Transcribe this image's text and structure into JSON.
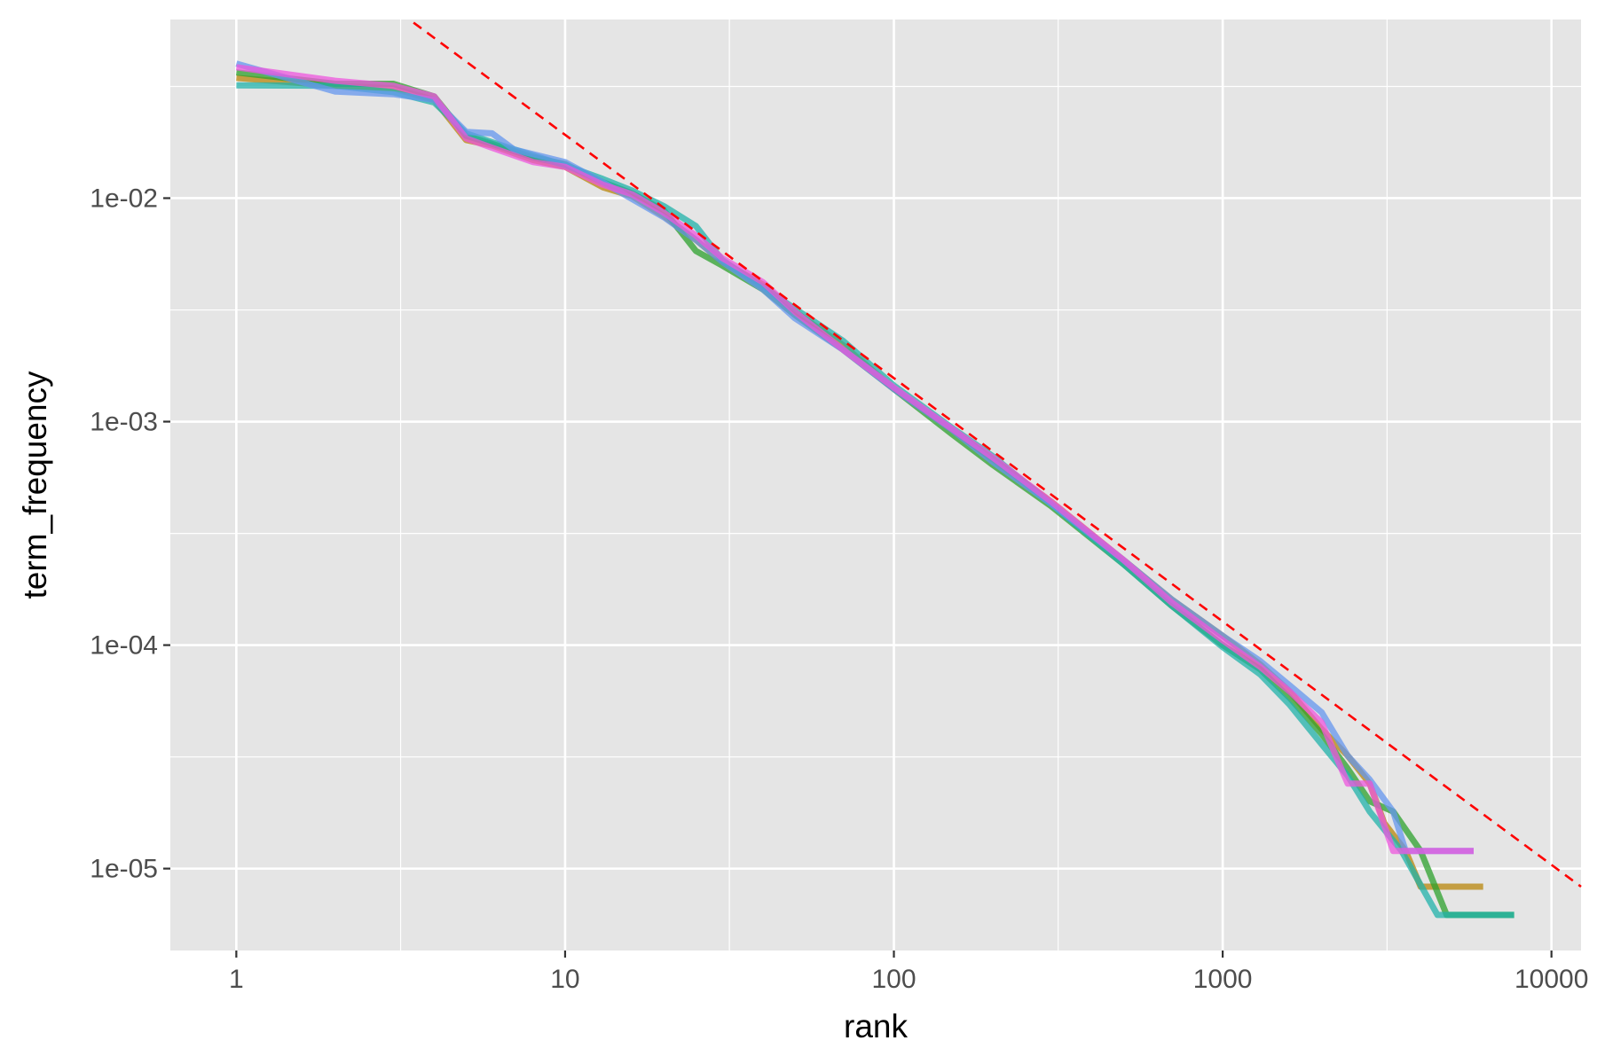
{
  "chart_data": {
    "type": "line",
    "title": "",
    "xlabel": "rank",
    "ylabel": "term_frequency",
    "x_scale": "log10",
    "y_scale": "log10",
    "xlim": [
      0.63,
      12300
    ],
    "ylim": [
      4.3e-06,
      0.063
    ],
    "x_ticks": [
      {
        "value": 1,
        "label": "1"
      },
      {
        "value": 10,
        "label": "10"
      },
      {
        "value": 100,
        "label": "100"
      },
      {
        "value": 1000,
        "label": "1000"
      },
      {
        "value": 10000,
        "label": "10000"
      }
    ],
    "x_minor_ticks": [
      3.16,
      31.6,
      316,
      3162
    ],
    "y_ticks": [
      {
        "value": 0.01,
        "label": "1e-02"
      },
      {
        "value": 0.001,
        "label": "1e-03"
      },
      {
        "value": 0.0001,
        "label": "1e-04"
      },
      {
        "value": 1e-05,
        "label": "1e-05"
      }
    ],
    "y_minor_ticks": [
      0.0316,
      0.00316,
      0.000316,
      3.16e-05
    ],
    "grid": true,
    "legend": "none",
    "colors": {
      "panel_background": "#e5e5e5",
      "grid": "#ffffff",
      "reference_line": "#ff0000"
    },
    "reference_line": {
      "style": "dashed",
      "color": "#ff0000",
      "points": [
        [
          3.46,
          0.061
        ],
        [
          12300,
          8.3e-06
        ]
      ]
    },
    "series": [
      {
        "color": "#b8860b",
        "points": [
          [
            1,
            0.0345
          ],
          [
            2,
            0.0318
          ],
          [
            3,
            0.031
          ],
          [
            4,
            0.0275
          ],
          [
            5,
            0.0182
          ],
          [
            6,
            0.0172
          ],
          [
            8,
            0.0148
          ],
          [
            10,
            0.0138
          ],
          [
            13,
            0.0112
          ],
          [
            16,
            0.0102
          ],
          [
            20,
            0.0083
          ],
          [
            25,
            0.0065
          ],
          [
            30,
            0.0052
          ],
          [
            40,
            0.0041
          ],
          [
            50,
            0.0031
          ],
          [
            70,
            0.0022
          ],
          [
            100,
            0.0014
          ],
          [
            150,
            0.00092
          ],
          [
            200,
            0.00068
          ],
          [
            300,
            0.00044
          ],
          [
            500,
            0.00024
          ],
          [
            700,
            0.00016
          ],
          [
            1000,
            0.00011
          ],
          [
            1300,
            8.2e-05
          ],
          [
            1600,
            6.2e-05
          ],
          [
            2000,
            4.2e-05
          ],
          [
            2400,
            3.2e-05
          ],
          [
            2800,
            2.4e-05
          ],
          [
            3100,
            1.6e-05
          ],
          [
            3600,
            1.2e-05
          ],
          [
            4000,
            8.3e-06
          ],
          [
            6200,
            8.3e-06
          ]
        ]
      },
      {
        "color": "#2ca02c",
        "points": [
          [
            1,
            0.0365
          ],
          [
            2,
            0.0325
          ],
          [
            3,
            0.0325
          ],
          [
            4,
            0.0285
          ],
          [
            5,
            0.019
          ],
          [
            6,
            0.0175
          ],
          [
            8,
            0.0152
          ],
          [
            10,
            0.0142
          ],
          [
            13,
            0.0118
          ],
          [
            16,
            0.0105
          ],
          [
            20,
            0.0088
          ],
          [
            25,
            0.0058
          ],
          [
            30,
            0.005
          ],
          [
            40,
            0.0039
          ],
          [
            50,
            0.003
          ],
          [
            70,
            0.0021
          ],
          [
            100,
            0.0014
          ],
          [
            150,
            0.00088
          ],
          [
            200,
            0.00064
          ],
          [
            300,
            0.00042
          ],
          [
            500,
            0.00023
          ],
          [
            700,
            0.00015
          ],
          [
            1000,
            0.0001
          ],
          [
            1300,
            7.8e-05
          ],
          [
            1600,
            5.8e-05
          ],
          [
            2000,
            4e-05
          ],
          [
            2400,
            2.8e-05
          ],
          [
            2800,
            2e-05
          ],
          [
            3300,
            1.8e-05
          ],
          [
            4000,
            1.2e-05
          ],
          [
            4800,
            6.2e-06
          ],
          [
            7700,
            6.2e-06
          ]
        ]
      },
      {
        "color": "#20b2aa",
        "points": [
          [
            1,
            0.032
          ],
          [
            2,
            0.0318
          ],
          [
            3,
            0.0298
          ],
          [
            4,
            0.0268
          ],
          [
            5,
            0.0195
          ],
          [
            6,
            0.0178
          ],
          [
            8,
            0.0155
          ],
          [
            10,
            0.014
          ],
          [
            13,
            0.0122
          ],
          [
            16,
            0.0108
          ],
          [
            20,
            0.0092
          ],
          [
            25,
            0.0075
          ],
          [
            30,
            0.0053
          ],
          [
            40,
            0.004
          ],
          [
            50,
            0.0032
          ],
          [
            70,
            0.0023
          ],
          [
            100,
            0.00145
          ],
          [
            150,
            0.00094
          ],
          [
            200,
            0.0007
          ],
          [
            300,
            0.00043
          ],
          [
            500,
            0.00023
          ],
          [
            700,
            0.00015
          ],
          [
            1000,
            9.8e-05
          ],
          [
            1300,
            7.4e-05
          ],
          [
            1600,
            5.4e-05
          ],
          [
            2000,
            3.6e-05
          ],
          [
            2400,
            2.6e-05
          ],
          [
            2800,
            1.8e-05
          ],
          [
            3500,
            1.2e-05
          ],
          [
            4500,
            6.2e-06
          ],
          [
            7700,
            6.2e-06
          ]
        ]
      },
      {
        "color": "#6495ed",
        "points": [
          [
            1,
            0.04
          ],
          [
            2,
            0.03
          ],
          [
            3,
            0.0292
          ],
          [
            4,
            0.0275
          ],
          [
            5,
            0.0198
          ],
          [
            6,
            0.0195
          ],
          [
            7,
            0.0165
          ],
          [
            10,
            0.0145
          ],
          [
            13,
            0.0118
          ],
          [
            16,
            0.0099
          ],
          [
            20,
            0.0082
          ],
          [
            25,
            0.0065
          ],
          [
            30,
            0.0052
          ],
          [
            40,
            0.0039
          ],
          [
            50,
            0.0029
          ],
          [
            70,
            0.0021
          ],
          [
            100,
            0.0014
          ],
          [
            150,
            0.00092
          ],
          [
            200,
            0.00066
          ],
          [
            300,
            0.00043
          ],
          [
            500,
            0.00024
          ],
          [
            700,
            0.00016
          ],
          [
            1000,
            0.00011
          ],
          [
            1300,
            8.5e-05
          ],
          [
            1600,
            6.6e-05
          ],
          [
            2000,
            5e-05
          ],
          [
            2400,
            3.2e-05
          ],
          [
            2800,
            2.5e-05
          ],
          [
            3300,
            1.8e-05
          ],
          [
            3600,
            1.2e-05
          ],
          [
            5800,
            1.2e-05
          ]
        ]
      },
      {
        "color": "#ee55dd",
        "points": [
          [
            1,
            0.0385
          ],
          [
            2,
            0.0335
          ],
          [
            3,
            0.0318
          ],
          [
            4,
            0.0285
          ],
          [
            5,
            0.0185
          ],
          [
            6,
            0.0168
          ],
          [
            8,
            0.0145
          ],
          [
            10,
            0.0138
          ],
          [
            13,
            0.0115
          ],
          [
            16,
            0.0104
          ],
          [
            20,
            0.0086
          ],
          [
            25,
            0.0068
          ],
          [
            30,
            0.0054
          ],
          [
            40,
            0.0042
          ],
          [
            50,
            0.0031
          ],
          [
            70,
            0.0021
          ],
          [
            100,
            0.00142
          ],
          [
            150,
            0.00093
          ],
          [
            200,
            0.00069
          ],
          [
            300,
            0.00044
          ],
          [
            500,
            0.00024
          ],
          [
            700,
            0.000155
          ],
          [
            1000,
            0.000105
          ],
          [
            1300,
            8e-05
          ],
          [
            1600,
            6.2e-05
          ],
          [
            2000,
            4.5e-05
          ],
          [
            2400,
            2.4e-05
          ],
          [
            2800,
            2.4e-05
          ],
          [
            3300,
            1.2e-05
          ],
          [
            5800,
            1.2e-05
          ]
        ]
      }
    ]
  }
}
